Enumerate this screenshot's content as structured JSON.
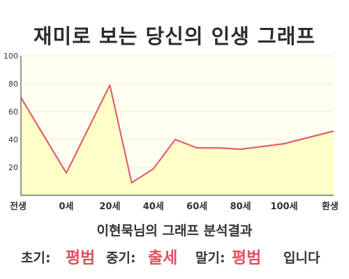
{
  "title": "재미로 보는 당신의 인생 그래프",
  "subtitle": "이현묵님의 그래프 분석결과",
  "verdict": {
    "early_label": "초기:",
    "early_value": "평범",
    "middle_label": "중기:",
    "middle_value": "출세",
    "late_label": "말기:",
    "late_value": "평범",
    "suffix": "입니다"
  },
  "colors": {
    "line": "#e06070",
    "fill": "#ffffc8",
    "plot_background": "#fffff0",
    "grid": "#ededd8"
  },
  "chart_data": {
    "type": "area",
    "x": [
      "전생",
      "0세",
      "20세",
      "40세",
      "60세",
      "80세",
      "100세",
      "환생"
    ],
    "x_ticks": [
      "전생",
      "0세",
      "20세",
      "40세",
      "60세",
      "80세",
      "100세",
      "환생"
    ],
    "series": [
      {
        "points": [
          [
            "전생",
            70
          ],
          [
            "0세",
            16
          ],
          [
            "20세",
            79
          ],
          [
            "30세",
            9
          ],
          [
            "40세",
            19
          ],
          [
            "50세",
            40
          ],
          [
            "60세",
            34
          ],
          [
            "70세",
            34
          ],
          [
            "80세",
            33
          ],
          [
            "90세",
            35
          ],
          [
            "100세",
            37
          ],
          [
            "환생",
            46
          ]
        ]
      }
    ],
    "y_ticks": [
      20,
      40,
      60,
      80,
      100
    ],
    "ylim": [
      0,
      100
    ],
    "xlabel": "",
    "ylabel": "",
    "grid": true
  }
}
